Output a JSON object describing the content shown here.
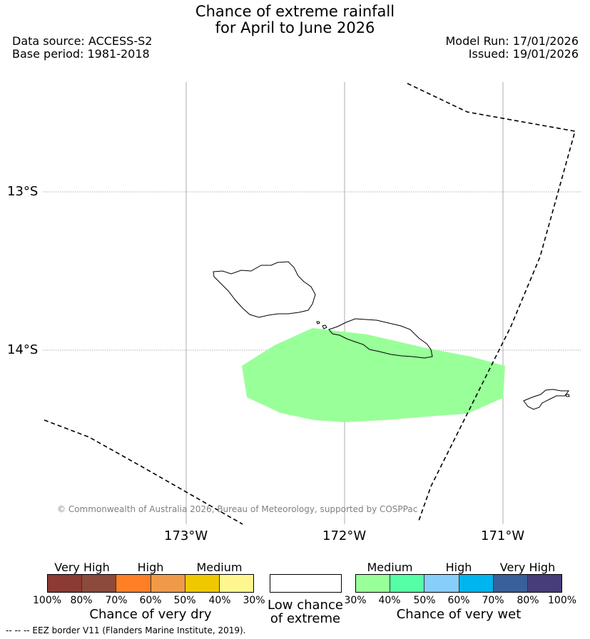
{
  "header": {
    "title_line1": "Chance of extreme rainfall",
    "title_line2": "for April to June 2026",
    "data_source": "Data source: ACCESS-S2",
    "base_period": "Base period: 1981-2018",
    "model_run": "Model Run: 17/01/2026",
    "issued": "Issued: 19/01/2026"
  },
  "map": {
    "lat_labels": [
      "13°S",
      "14°S"
    ],
    "lon_labels": [
      "173°W",
      "172°W",
      "171°W"
    ],
    "copyright": "© Commonwealth of Australia 2026, Bureau of Meteorology, supported by COSPPac",
    "forecast_region": {
      "category": "Medium",
      "color": "#99ff99",
      "meaning": "Chance of very wet 30%-40%"
    },
    "colors": {
      "coastline": "#000000",
      "eez_border": "#000000",
      "gridline": "#999999"
    }
  },
  "legend": {
    "dry": {
      "categories": [
        "Very High",
        "High",
        "Medium"
      ],
      "ticks": [
        "100%",
        "80%",
        "70%",
        "60%",
        "50%",
        "40%",
        "30%"
      ],
      "colors": [
        "#8b3a34",
        "#8b4a3c",
        "#ff7f24",
        "#ef9a48",
        "#f0c800",
        "#fff68f"
      ],
      "title": "Chance of very dry"
    },
    "low": {
      "title_line1": "Low chance",
      "title_line2": "of extreme",
      "color": "#ffffff"
    },
    "wet": {
      "categories": [
        "Medium",
        "High",
        "Very High"
      ],
      "ticks": [
        "30%",
        "40%",
        "50%",
        "60%",
        "70%",
        "80%",
        "100%"
      ],
      "colors": [
        "#99ff99",
        "#54ffa5",
        "#87cefa",
        "#00b4ee",
        "#3a5f9a",
        "#483d7b"
      ],
      "title": "Chance of very wet"
    }
  },
  "footnote": "-- -- -- EEZ border V11 (Flanders Marine Institute, 2019)."
}
